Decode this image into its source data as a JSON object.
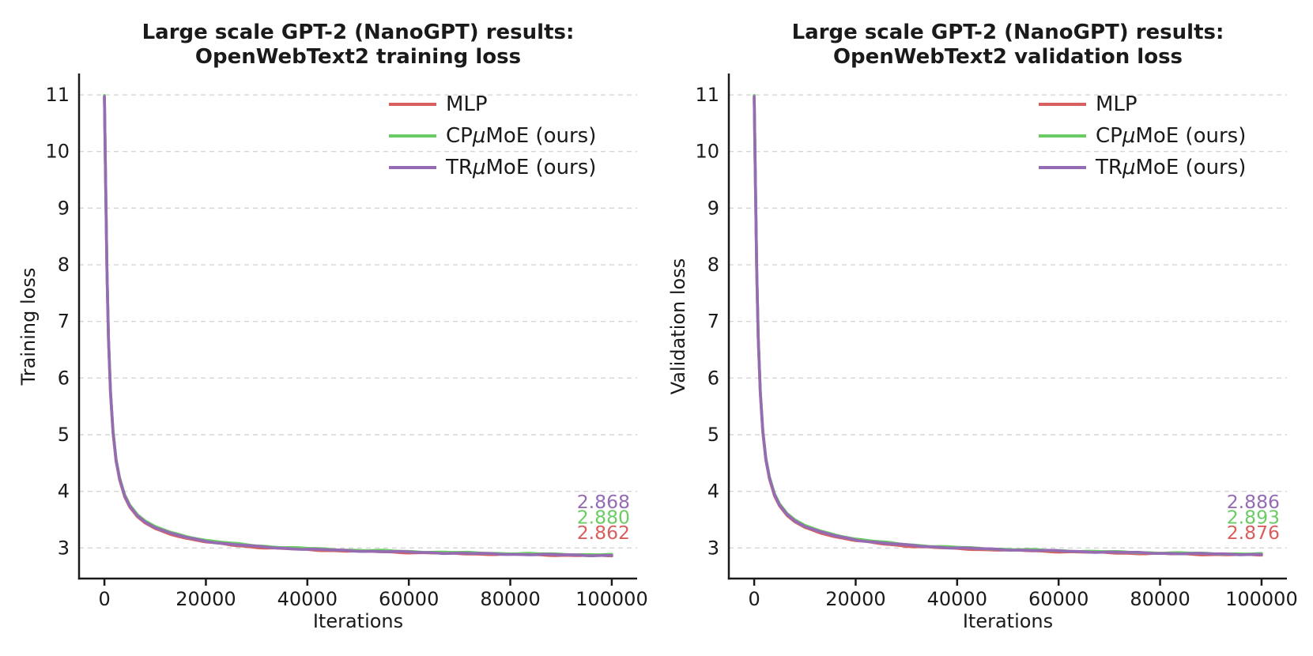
{
  "figure": {
    "background": "#ffffff",
    "text_color": "#1a1a1a",
    "spine_color": "#1a1a1a",
    "grid_color": "#d5d5d5"
  },
  "chart_data": [
    {
      "id": "training-loss",
      "type": "line",
      "title_line1": "Large scale GPT-2 (NanoGPT) results:",
      "title_line2": "OpenWebText2 training loss",
      "xlabel": "Iterations",
      "ylabel": "Training loss",
      "xlim": [
        -5000,
        105000
      ],
      "ylim": [
        2.46,
        11.35
      ],
      "xticks": [
        "0",
        "20000",
        "40000",
        "60000",
        "80000",
        "100000"
      ],
      "xtick_values": [
        0,
        20000,
        40000,
        60000,
        80000,
        100000
      ],
      "yticks": [
        "3",
        "4",
        "5",
        "6",
        "7",
        "8",
        "9",
        "10",
        "11"
      ],
      "ytick_values": [
        3,
        4,
        5,
        6,
        7,
        8,
        9,
        10,
        11
      ],
      "grid": "dashed-horizontal",
      "legend_position": "upper-right-inside",
      "legend": [
        {
          "label": "MLP",
          "color": "#d65f5f"
        },
        {
          "label": "CPμMoE (ours)",
          "color": "#6acc64"
        },
        {
          "label": "TRμMoE (ours)",
          "color": "#956cb4"
        }
      ],
      "base_curve": {
        "x": [
          0,
          200,
          500,
          800,
          1200,
          1700,
          2300,
          3000,
          4000,
          5000,
          6500,
          8000,
          10000,
          13000,
          16000,
          20000,
          25000,
          30000,
          35000,
          40000,
          45000,
          50000,
          55000,
          60000,
          65000,
          70000,
          75000,
          80000,
          85000,
          90000,
          95000,
          100000
        ],
        "y": [
          10.97,
          9.7,
          7.9,
          6.7,
          5.75,
          5.05,
          4.55,
          4.22,
          3.92,
          3.74,
          3.57,
          3.46,
          3.36,
          3.26,
          3.19,
          3.12,
          3.065,
          3.025,
          2.998,
          2.978,
          2.962,
          2.948,
          2.938,
          2.926,
          2.916,
          2.906,
          2.898,
          2.89,
          2.884,
          2.878,
          2.872,
          2.868
        ]
      },
      "series": [
        {
          "name": "MLP",
          "color": "#d65f5f",
          "final_value": "2.862",
          "offset_start": -0.02,
          "offset_end": -0.006,
          "z": 1
        },
        {
          "name": "CPμMoE (ours)",
          "color": "#6acc64",
          "final_value": "2.880",
          "offset_start": 0.02,
          "offset_end": 0.012,
          "z": 2
        },
        {
          "name": "TRμMoE (ours)",
          "color": "#956cb4",
          "final_value": "2.868",
          "offset_start": 0.0,
          "offset_end": 0.0,
          "z": 3
        }
      ],
      "annotations": [
        {
          "text": "2.868",
          "series": "TRμMoE (ours)",
          "color": "#956cb4"
        },
        {
          "text": "2.880",
          "series": "CPμMoE (ours)",
          "color": "#6acc64"
        },
        {
          "text": "2.862",
          "series": "MLP",
          "color": "#d65f5f"
        }
      ]
    },
    {
      "id": "validation-loss",
      "type": "line",
      "title_line1": "Large scale GPT-2 (NanoGPT) results:",
      "title_line2": "OpenWebText2 validation loss",
      "xlabel": "Iterations",
      "ylabel": "Validation loss",
      "xlim": [
        -5000,
        105000
      ],
      "ylim": [
        2.46,
        11.35
      ],
      "xticks": [
        "0",
        "20000",
        "40000",
        "60000",
        "80000",
        "100000"
      ],
      "xtick_values": [
        0,
        20000,
        40000,
        60000,
        80000,
        100000
      ],
      "yticks": [
        "3",
        "4",
        "5",
        "6",
        "7",
        "8",
        "9",
        "10",
        "11"
      ],
      "ytick_values": [
        3,
        4,
        5,
        6,
        7,
        8,
        9,
        10,
        11
      ],
      "grid": "dashed-horizontal",
      "legend_position": "upper-right-inside",
      "legend": [
        {
          "label": "MLP",
          "color": "#d65f5f"
        },
        {
          "label": "CPμMoE (ours)",
          "color": "#6acc64"
        },
        {
          "label": "TRμMoE (ours)",
          "color": "#956cb4"
        }
      ],
      "base_curve": {
        "x": [
          0,
          200,
          500,
          800,
          1200,
          1700,
          2300,
          3000,
          4000,
          5000,
          6500,
          8000,
          10000,
          13000,
          16000,
          20000,
          25000,
          30000,
          35000,
          40000,
          45000,
          50000,
          55000,
          60000,
          65000,
          70000,
          75000,
          80000,
          85000,
          90000,
          95000,
          100000
        ],
        "y": [
          10.97,
          9.7,
          7.9,
          6.7,
          5.76,
          5.06,
          4.57,
          4.24,
          3.94,
          3.76,
          3.59,
          3.48,
          3.38,
          3.285,
          3.215,
          3.145,
          3.09,
          3.05,
          3.022,
          3.0,
          2.984,
          2.97,
          2.958,
          2.946,
          2.936,
          2.925,
          2.916,
          2.908,
          2.901,
          2.895,
          2.89,
          2.886
        ]
      },
      "series": [
        {
          "name": "MLP",
          "color": "#d65f5f",
          "final_value": "2.876",
          "offset_start": -0.02,
          "offset_end": -0.01,
          "z": 1
        },
        {
          "name": "CPμMoE (ours)",
          "color": "#6acc64",
          "final_value": "2.893",
          "offset_start": 0.02,
          "offset_end": 0.007,
          "z": 2
        },
        {
          "name": "TRμMoE (ours)",
          "color": "#956cb4",
          "final_value": "2.886",
          "offset_start": 0.0,
          "offset_end": 0.0,
          "z": 3
        }
      ],
      "annotations": [
        {
          "text": "2.886",
          "series": "TRμMoE (ours)",
          "color": "#956cb4"
        },
        {
          "text": "2.893",
          "series": "CPμMoE (ours)",
          "color": "#6acc64"
        },
        {
          "text": "2.876",
          "series": "MLP",
          "color": "#d65f5f"
        }
      ]
    }
  ]
}
